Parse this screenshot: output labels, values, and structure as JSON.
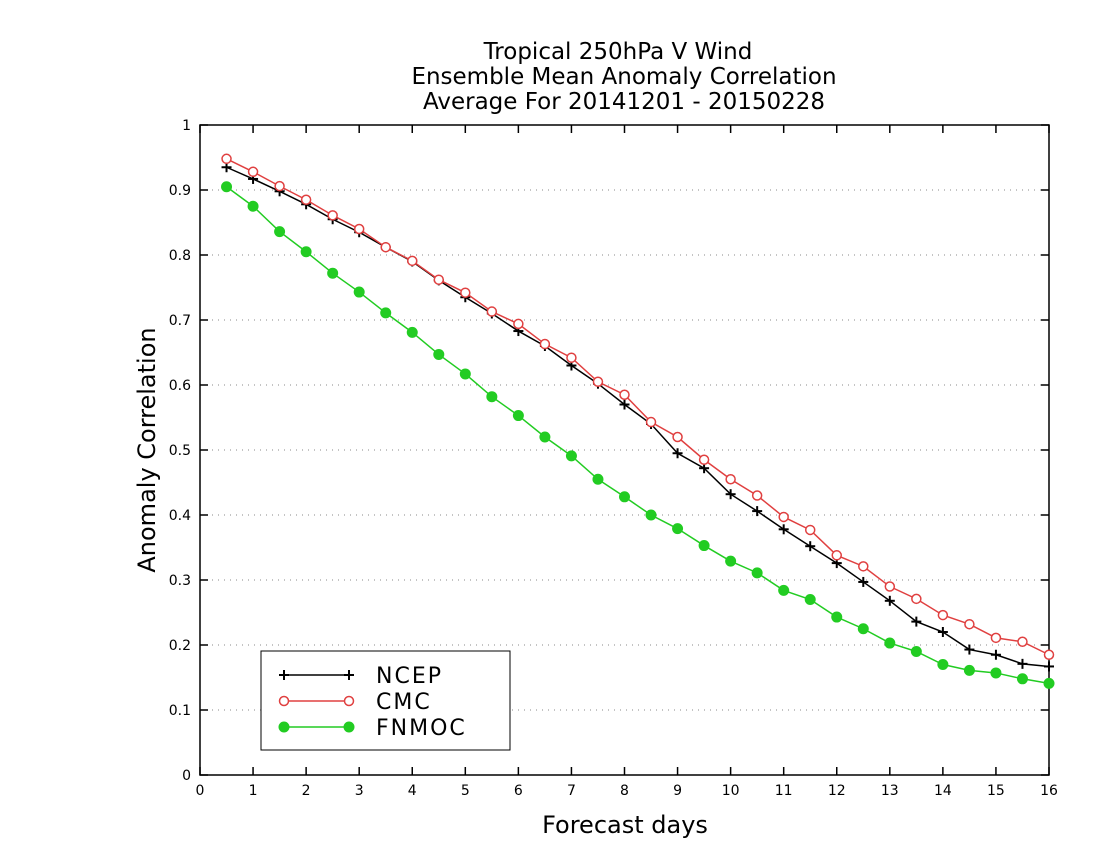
{
  "chart_data": {
    "type": "line",
    "title": [
      "Tropical 250hPa V Wind",
      "Ensemble Mean Anomaly Correlation",
      "Average For 20141201 - 20150228"
    ],
    "xlabel": "Forecast days",
    "ylabel": "Anomaly Correlation",
    "xlim": [
      0,
      16
    ],
    "ylim": [
      0,
      1
    ],
    "x_ticks": [
      "0",
      "1",
      "2",
      "3",
      "4",
      "5",
      "6",
      "7",
      "8",
      "9",
      "10",
      "11",
      "12",
      "13",
      "14",
      "15",
      "16"
    ],
    "y_ticks": [
      "0",
      "0.1",
      "0.2",
      "0.3",
      "0.4",
      "0.5",
      "0.6",
      "0.7",
      "0.8",
      "0.9",
      "1"
    ],
    "grid": "horizontal dotted",
    "legend_position": "bottom-left",
    "x": [
      0.5,
      1,
      1.5,
      2,
      2.5,
      3,
      3.5,
      4,
      4.5,
      5,
      5.5,
      6,
      6.5,
      7,
      7.5,
      8,
      8.5,
      9,
      9.5,
      10,
      10.5,
      11,
      11.5,
      12,
      12.5,
      13,
      13.5,
      14,
      14.5,
      15,
      15.5,
      16
    ],
    "series": [
      {
        "name": "NCEP",
        "color": "#000000",
        "marker": "plus",
        "values": [
          0.935,
          0.917,
          0.898,
          0.878,
          0.855,
          0.835,
          0.812,
          0.79,
          0.761,
          0.735,
          0.71,
          0.683,
          0.66,
          0.63,
          0.602,
          0.57,
          0.54,
          0.495,
          0.472,
          0.432,
          0.406,
          0.378,
          0.352,
          0.326,
          0.297,
          0.268,
          0.236,
          0.22,
          0.193,
          0.185,
          0.171,
          0.167
        ]
      },
      {
        "name": "CMC",
        "color": "#e04040",
        "marker": "open-circle",
        "values": [
          0.948,
          0.928,
          0.906,
          0.885,
          0.861,
          0.84,
          0.812,
          0.791,
          0.762,
          0.742,
          0.713,
          0.694,
          0.663,
          0.642,
          0.605,
          0.585,
          0.543,
          0.52,
          0.485,
          0.455,
          0.43,
          0.397,
          0.377,
          0.338,
          0.321,
          0.29,
          0.271,
          0.246,
          0.232,
          0.211,
          0.205,
          0.185
        ]
      },
      {
        "name": "FNMOC",
        "color": "#22cc22",
        "marker": "filled-circle",
        "values": [
          0.905,
          0.875,
          0.836,
          0.805,
          0.772,
          0.743,
          0.711,
          0.681,
          0.647,
          0.617,
          0.582,
          0.553,
          0.52,
          0.491,
          0.455,
          0.428,
          0.4,
          0.379,
          0.353,
          0.329,
          0.311,
          0.284,
          0.27,
          0.243,
          0.225,
          0.203,
          0.19,
          0.17,
          0.161,
          0.157,
          0.148,
          0.141
        ]
      }
    ]
  }
}
